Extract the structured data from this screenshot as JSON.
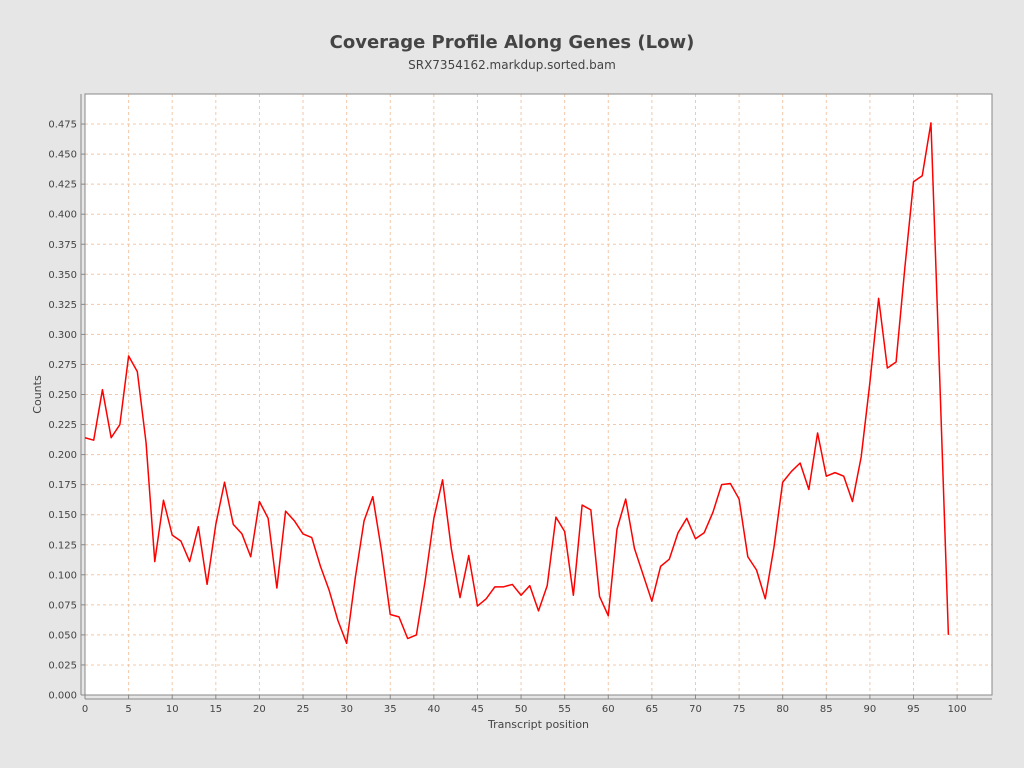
{
  "chart_data": {
    "type": "line",
    "title": "Coverage Profile Along Genes (Low)",
    "subtitle": "SRX7354162.markdup.sorted.bam",
    "xlabel": "Transcript position",
    "ylabel": "Counts",
    "xlim": [
      0,
      104
    ],
    "ylim": [
      0,
      0.5
    ],
    "xticks": [
      0,
      5,
      10,
      15,
      20,
      25,
      30,
      35,
      40,
      45,
      50,
      55,
      60,
      65,
      70,
      75,
      80,
      85,
      90,
      95,
      100
    ],
    "yticks": [
      0.0,
      0.025,
      0.05,
      0.075,
      0.1,
      0.125,
      0.15,
      0.175,
      0.2,
      0.225,
      0.25,
      0.275,
      0.3,
      0.325,
      0.35,
      0.375,
      0.4,
      0.425,
      0.45,
      0.475
    ],
    "ytick_labels": [
      "0.000",
      "0.025",
      "0.050",
      "0.075",
      "0.100",
      "0.125",
      "0.150",
      "0.175",
      "0.200",
      "0.225",
      "0.250",
      "0.275",
      "0.300",
      "0.325",
      "0.350",
      "0.375",
      "0.400",
      "0.425",
      "0.450",
      "0.475"
    ],
    "grid": true,
    "colors": {
      "line": "#ff0000",
      "grid": "#f4c8a8",
      "plot_bg": "#ffffff",
      "page_bg": "#e6e6e6"
    },
    "series": [
      {
        "x": [
          0,
          1,
          2,
          3,
          4,
          5,
          6,
          7,
          8,
          9,
          10,
          11,
          12,
          13,
          14,
          15,
          16,
          17,
          18,
          19,
          20,
          21,
          22,
          23,
          24,
          25,
          26,
          27,
          28,
          29,
          30,
          31,
          32,
          33,
          34,
          35,
          36,
          37,
          38,
          39,
          40,
          41,
          42,
          43,
          44,
          45,
          46,
          47,
          48,
          49,
          50,
          51,
          52,
          53,
          54,
          55,
          56,
          57,
          58,
          59,
          60,
          61,
          62,
          63,
          64,
          65,
          66,
          67,
          68,
          69,
          70,
          71,
          72,
          73,
          74,
          75,
          76,
          77,
          78,
          79,
          80,
          81,
          82,
          83,
          84,
          85,
          86,
          87,
          88,
          89,
          90,
          91,
          92,
          93,
          94,
          95,
          96,
          97,
          98,
          99
        ],
        "values": [
          0.214,
          0.212,
          0.254,
          0.214,
          0.225,
          0.282,
          0.269,
          0.21,
          0.111,
          0.162,
          0.133,
          0.128,
          0.111,
          0.14,
          0.092,
          0.142,
          0.177,
          0.142,
          0.134,
          0.115,
          0.161,
          0.147,
          0.089,
          0.153,
          0.145,
          0.134,
          0.131,
          0.107,
          0.087,
          0.062,
          0.043,
          0.098,
          0.145,
          0.165,
          0.12,
          0.067,
          0.065,
          0.047,
          0.05,
          0.095,
          0.147,
          0.179,
          0.122,
          0.081,
          0.116,
          0.074,
          0.08,
          0.09,
          0.09,
          0.092,
          0.083,
          0.091,
          0.07,
          0.091,
          0.148,
          0.136,
          0.083,
          0.158,
          0.154,
          0.082,
          0.066,
          0.138,
          0.163,
          0.122,
          0.1,
          0.078,
          0.107,
          0.113,
          0.135,
          0.147,
          0.13,
          0.135,
          0.152,
          0.175,
          0.176,
          0.163,
          0.115,
          0.104,
          0.08,
          0.123,
          0.177,
          0.186,
          0.193,
          0.171,
          0.218,
          0.182,
          0.185,
          0.182,
          0.161,
          0.198,
          0.26,
          0.33,
          0.272,
          0.277,
          0.355,
          0.427,
          0.432,
          0.476,
          0.265,
          0.05
        ]
      }
    ]
  }
}
